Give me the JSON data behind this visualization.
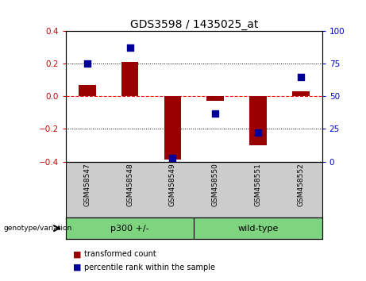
{
  "title": "GDS3598 / 1435025_at",
  "samples": [
    "GSM458547",
    "GSM458548",
    "GSM458549",
    "GSM458550",
    "GSM458551",
    "GSM458552"
  ],
  "red_bars": [
    0.07,
    0.21,
    -0.39,
    -0.03,
    -0.3,
    0.03
  ],
  "blue_dots_right_axis": [
    75,
    87,
    3,
    37,
    22,
    65
  ],
  "ylim_left": [
    -0.4,
    0.4
  ],
  "ylim_right": [
    0,
    100
  ],
  "yticks_left": [
    -0.4,
    -0.2,
    0.0,
    0.2,
    0.4
  ],
  "yticks_right": [
    0,
    25,
    50,
    75,
    100
  ],
  "group_labels": [
    "p300 +/-",
    "wild-type"
  ],
  "group_colors": [
    "#7FD47F",
    "#7FD47F"
  ],
  "bar_color": "#990000",
  "dot_color": "#000099",
  "hline_color": "#FF0000",
  "legend_items": [
    "transformed count",
    "percentile rank within the sample"
  ],
  "left_ylabel_color": "#CC0000",
  "right_ylabel_color": "#0000CC",
  "background_plot": "#FFFFFF",
  "background_label": "#CCCCCC",
  "figsize": [
    4.61,
    3.54
  ],
  "dpi": 100
}
